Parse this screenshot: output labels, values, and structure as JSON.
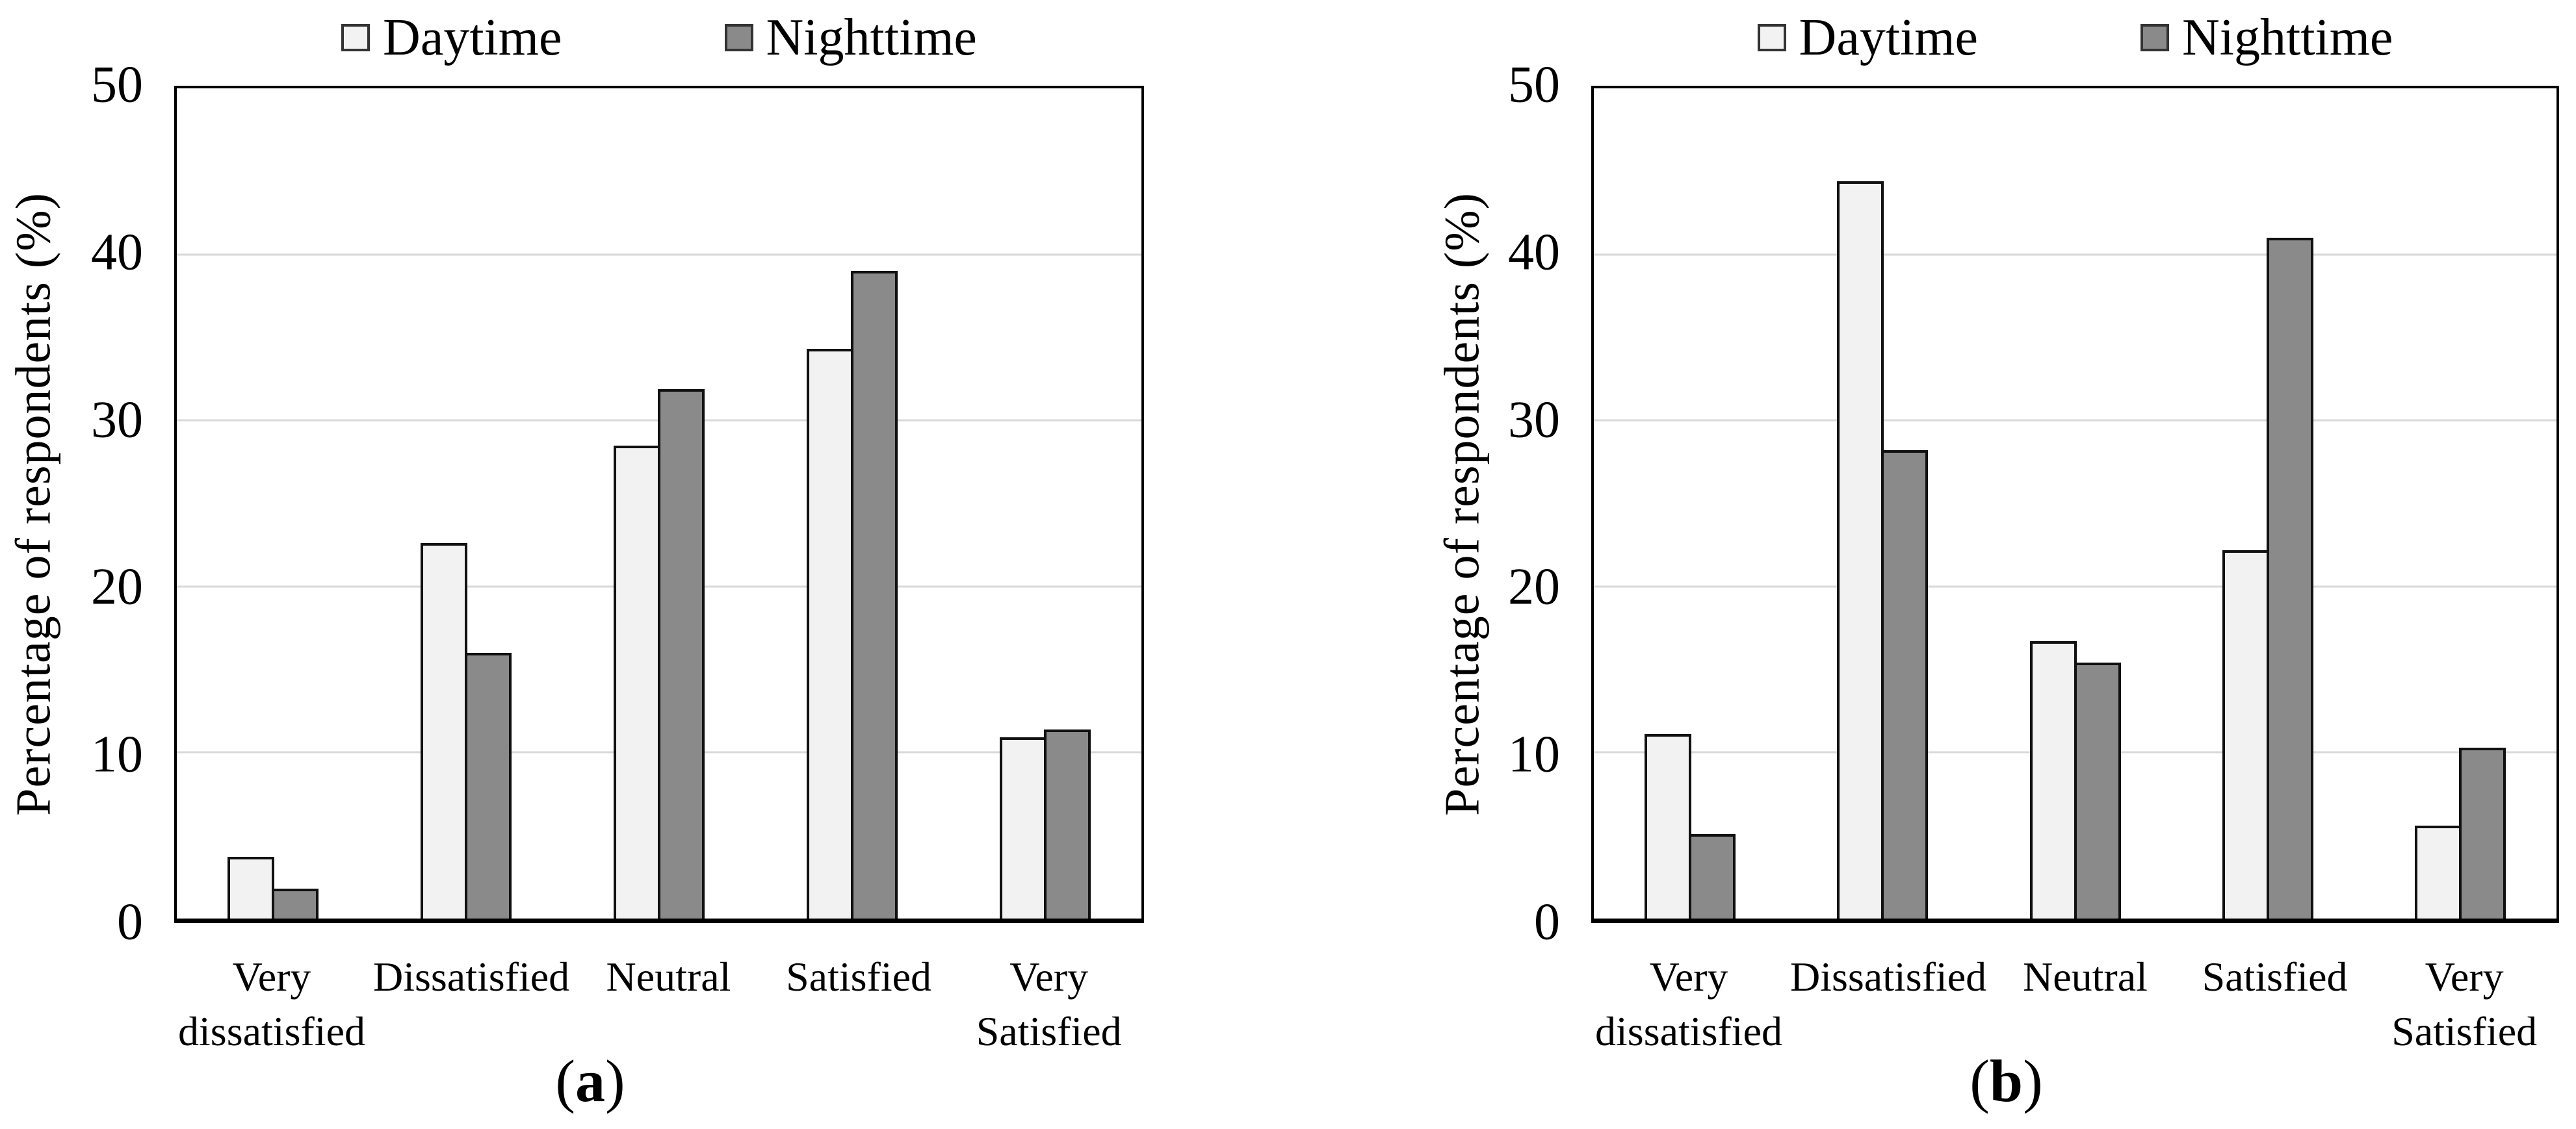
{
  "background": "#ffffff",
  "legend": {
    "position": "top",
    "items": [
      {
        "label": "Daytime",
        "color": "#f2f2f2"
      },
      {
        "label": "Nighttime",
        "color": "#8a8a8a"
      }
    ]
  },
  "chart_data": [
    {
      "type": "bar",
      "caption": {
        "open": "(",
        "letter": "a",
        "close": ")"
      },
      "title": "",
      "xlabel": "",
      "ylabel": "Percentage of respondents (%)",
      "ylim": [
        0,
        50
      ],
      "yticks": [
        0,
        10,
        20,
        30,
        40,
        50
      ],
      "grid": true,
      "legend_position": "top",
      "categories": [
        "Very dissatisfied",
        "Dissatisfied",
        "Neutral",
        "Satisfied",
        "Very Satisfied"
      ],
      "series": [
        {
          "name": "Daytime",
          "color": "#f2f2f2",
          "values": [
            3.7,
            22.6,
            28.5,
            34.3,
            10.9
          ]
        },
        {
          "name": "Nighttime",
          "color": "#8a8a8a",
          "values": [
            1.8,
            16.0,
            31.9,
            39.0,
            11.4
          ]
        }
      ]
    },
    {
      "type": "bar",
      "caption": {
        "open": "(",
        "letter": "b",
        "close": ")"
      },
      "title": "",
      "xlabel": "",
      "ylabel": "Percentage of respondents (%)",
      "ylim": [
        0,
        50
      ],
      "yticks": [
        0,
        10,
        20,
        30,
        40,
        50
      ],
      "grid": true,
      "legend_position": "top",
      "categories": [
        "Very dissatisfied",
        "Dissatisfied",
        "Neutral",
        "Satisfied",
        "Very Satisfied"
      ],
      "series": [
        {
          "name": "Daytime",
          "color": "#f2f2f2",
          "values": [
            11.1,
            44.4,
            16.7,
            22.2,
            5.6
          ]
        },
        {
          "name": "Nighttime",
          "color": "#8a8a8a",
          "values": [
            5.1,
            28.2,
            15.4,
            41.0,
            10.3
          ]
        }
      ]
    }
  ]
}
